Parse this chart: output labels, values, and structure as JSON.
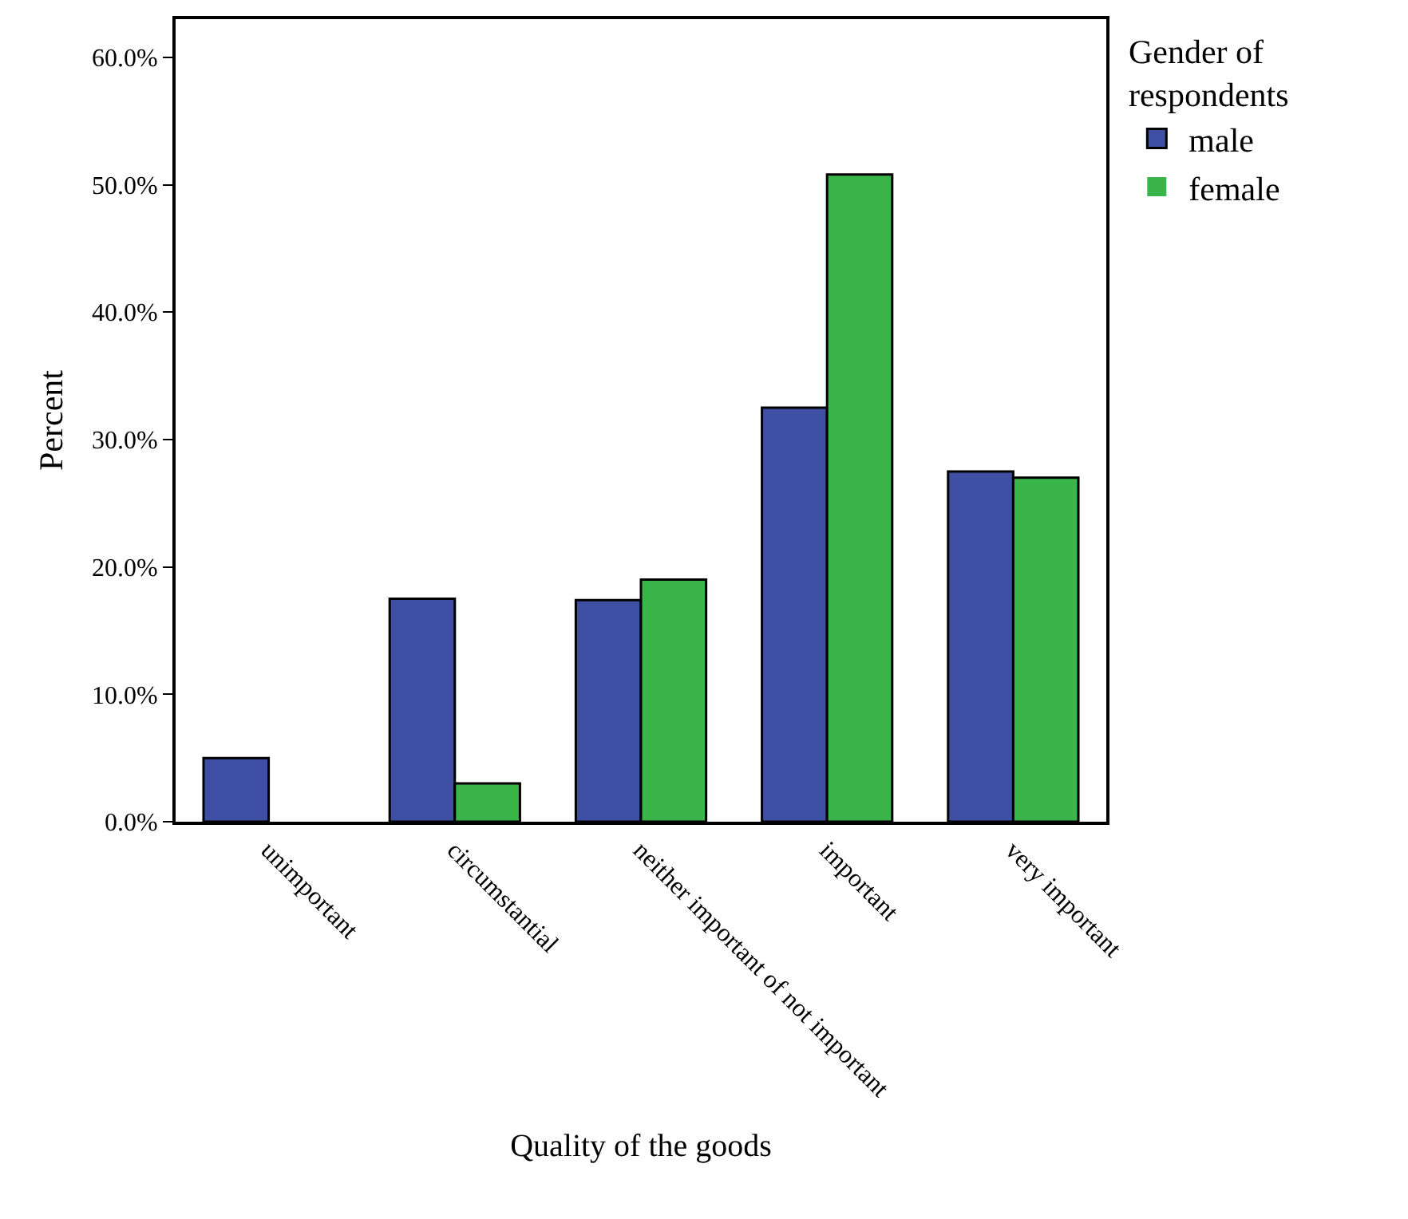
{
  "chart_data": {
    "type": "bar",
    "xlabel": "Quality of the goods",
    "ylabel": "Percent",
    "legend_title": "Gender of respondents",
    "categories": [
      "unimportant",
      "circumstantial",
      "neither important of not important",
      "important",
      "very important"
    ],
    "series": [
      {
        "name": "male",
        "color": "#3f4fa3",
        "values": [
          5.0,
          17.5,
          17.4,
          32.5,
          27.5
        ]
      },
      {
        "name": "female",
        "color": "#3ab54a",
        "values": [
          0,
          3.0,
          19.0,
          50.8,
          27.0
        ]
      }
    ],
    "ylim": [
      0,
      63
    ],
    "yticks": [
      {
        "value": 0,
        "label": "0.0%"
      },
      {
        "value": 10,
        "label": "10.0%"
      },
      {
        "value": 20,
        "label": "20.0%"
      },
      {
        "value": 30,
        "label": "30.0%"
      },
      {
        "value": 40,
        "label": "40.0%"
      },
      {
        "value": 50,
        "label": "50.0%"
      },
      {
        "value": 60,
        "label": "60.0%"
      }
    ],
    "grid": false,
    "legend": "top right"
  }
}
